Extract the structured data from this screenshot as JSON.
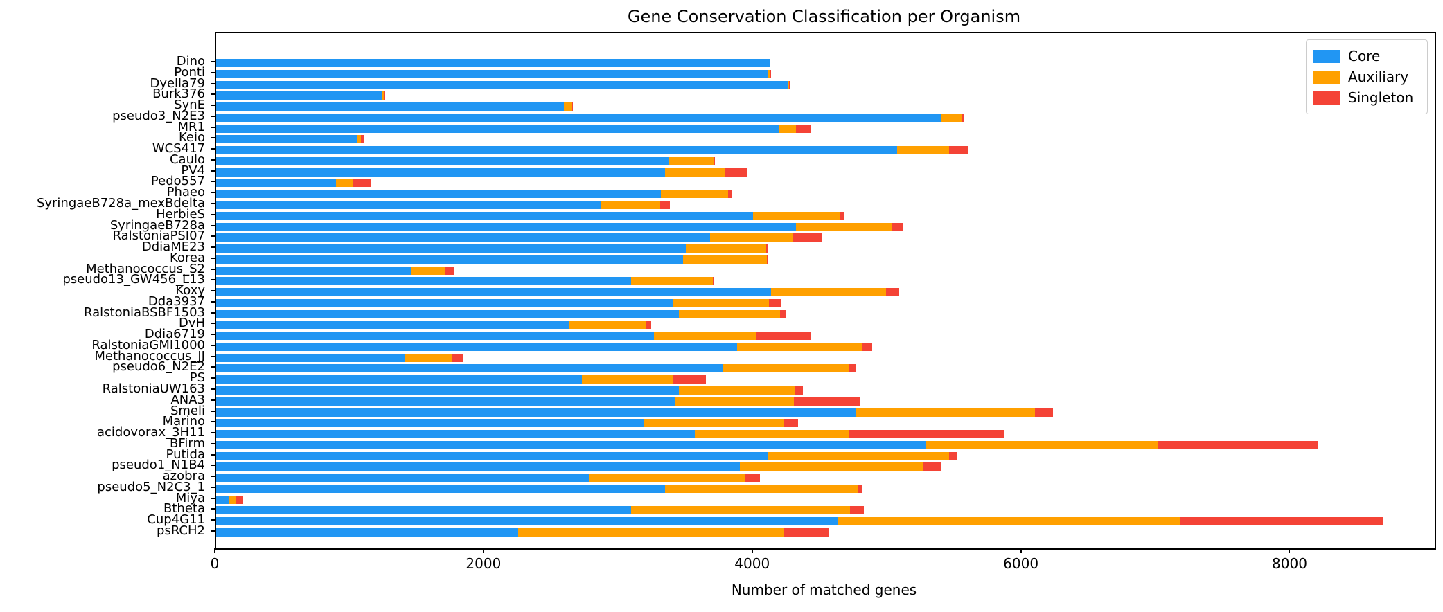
{
  "figure": {
    "title": "Gene Conservation Classification per Organism",
    "xlabel": "Number of matched genes"
  },
  "chart_data": {
    "type": "bar",
    "orientation": "horizontal",
    "stacked": true,
    "title": "Gene Conservation Classification per Organism",
    "xlabel": "Number of matched genes",
    "ylabel": "",
    "grid": false,
    "xlim": [
      0,
      9070
    ],
    "xticks": [
      0,
      2000,
      4000,
      6000,
      8000
    ],
    "legend": {
      "position": "upper right",
      "entries": [
        "Core",
        "Auxiliary",
        "Singleton"
      ]
    },
    "colors": {
      "Core": "#2196F3",
      "Auxiliary": "#FFA000",
      "Singleton": "#F44336"
    },
    "categories": [
      "Dino",
      "Ponti",
      "Dyella79",
      "Burk376",
      "SynE",
      "pseudo3_N2E3",
      "MR1",
      "Keio",
      "WCS417",
      "Caulo",
      "PV4",
      "Pedo557",
      "Phaeo",
      "SyringaeB728a_mexBdelta",
      "HerbieS",
      "SyringaeB728a",
      "RalstoniaPSI07",
      "DdiaME23",
      "Korea",
      "Methanococcus_S2",
      "pseudo13_GW456_L13",
      "Koxy",
      "Dda3937",
      "RalstoniaBSBF1503",
      "DvH",
      "Ddia6719",
      "RalstoniaGMI1000",
      "Methanococcus_JJ",
      "pseudo6_N2E2",
      "PS",
      "RalstoniaUW163",
      "ANA3",
      "Smeli",
      "Marino",
      "acidovorax_3H11",
      "BFirm",
      "Putida",
      "pseudo1_N1B4",
      "azobra",
      "pseudo5_N2C3_1",
      "Miya",
      "Btheta",
      "Cup4G11",
      "psRCH2"
    ],
    "series": [
      {
        "name": "Core",
        "color": "#2196F3",
        "values": [
          4125,
          4110,
          4255,
          1230,
          2590,
          5400,
          4190,
          1050,
          5070,
          3370,
          3340,
          890,
          3310,
          2860,
          3995,
          4315,
          3675,
          3495,
          3475,
          1455,
          3090,
          4130,
          3400,
          3445,
          2630,
          3260,
          3875,
          1410,
          3770,
          2720,
          3445,
          3415,
          4760,
          3185,
          3565,
          5280,
          4105,
          3900,
          2775,
          3340,
          100,
          3090,
          4625,
          2250
        ]
      },
      {
        "name": "Auxiliary",
        "color": "#FFA000",
        "values": [
          0,
          10,
          8,
          18,
          60,
          155,
          125,
          30,
          385,
          335,
          450,
          125,
          500,
          445,
          645,
          710,
          615,
          600,
          625,
          245,
          605,
          855,
          715,
          750,
          570,
          755,
          930,
          350,
          945,
          680,
          860,
          885,
          1335,
          1040,
          1150,
          1735,
          1350,
          1365,
          1160,
          1440,
          45,
          1630,
          2555,
          1975
        ]
      },
      {
        "name": "Singleton",
        "color": "#F44336",
        "values": [
          0,
          10,
          12,
          10,
          5,
          10,
          115,
          25,
          145,
          5,
          160,
          140,
          30,
          75,
          30,
          90,
          215,
          10,
          10,
          75,
          10,
          100,
          85,
          45,
          40,
          410,
          80,
          80,
          50,
          245,
          60,
          490,
          135,
          105,
          1155,
          1190,
          60,
          135,
          115,
          30,
          55,
          100,
          1510,
          340
        ]
      }
    ]
  }
}
